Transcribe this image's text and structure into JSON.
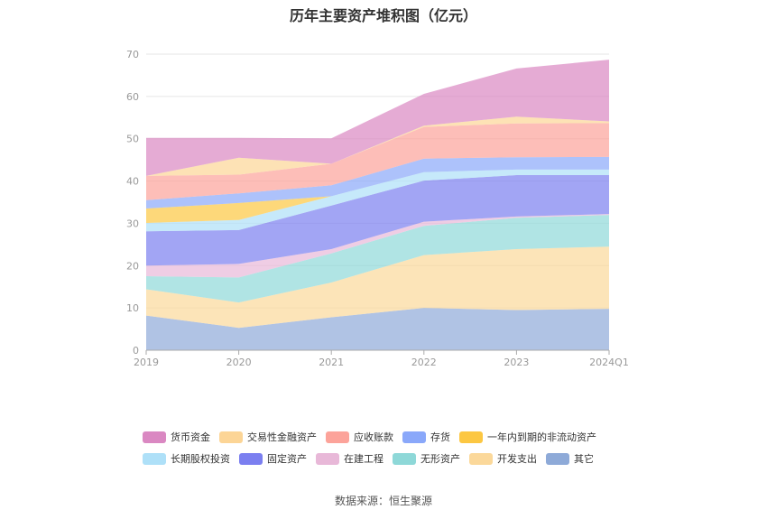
{
  "title": "历年主要资产堆积图（亿元）",
  "source": "数据来源：恒生聚源",
  "chart_data": {
    "type": "area",
    "stacked": true,
    "categories": [
      "2019",
      "2020",
      "2021",
      "2022",
      "2023",
      "2024Q1"
    ],
    "ylim": [
      0,
      70
    ],
    "yticks": [
      0,
      10,
      20,
      30,
      40,
      50,
      60,
      70
    ],
    "grid": true,
    "legend_position": "bottom",
    "series": [
      {
        "name": "其它",
        "color": "#8eaad8",
        "values": [
          8.2,
          5.3,
          7.8,
          10.0,
          9.5,
          9.8
        ]
      },
      {
        "name": "开发支出",
        "color": "#fbd89a",
        "values": [
          6.2,
          6.0,
          8.2,
          12.5,
          14.4,
          14.7
        ]
      },
      {
        "name": "无形资产",
        "color": "#8ed8d8",
        "values": [
          3.1,
          5.9,
          6.9,
          6.9,
          7.4,
          7.5
        ]
      },
      {
        "name": "在建工程",
        "color": "#e8b8d8",
        "values": [
          2.5,
          3.2,
          1.0,
          1.0,
          0.3,
          0.2
        ]
      },
      {
        "name": "固定资产",
        "color": "#7b7ff0",
        "values": [
          8.1,
          8.0,
          10.3,
          9.7,
          9.8,
          9.2
        ]
      },
      {
        "name": "长期股权投资",
        "color": "#aee0f8",
        "values": [
          2.0,
          2.4,
          2.2,
          2.0,
          1.3,
          1.3
        ]
      },
      {
        "name": "一年内到期的非流动资产",
        "color": "#fcc742",
        "values": [
          3.4,
          4.0,
          0.0,
          0.0,
          0.0,
          0.0
        ]
      },
      {
        "name": "存货",
        "color": "#8aa8fa",
        "values": [
          2.0,
          2.3,
          2.6,
          3.2,
          2.9,
          3.0
        ]
      },
      {
        "name": "应收账款",
        "color": "#fca39a",
        "values": [
          5.7,
          4.4,
          5.1,
          7.5,
          8.0,
          8.0
        ]
      },
      {
        "name": "交易性金融资产",
        "color": "#fcd596",
        "values": [
          0.0,
          4.0,
          0.0,
          0.3,
          1.6,
          0.4
        ]
      },
      {
        "name": "货币资金",
        "color": "#da88c2",
        "values": [
          9.0,
          4.7,
          6.0,
          7.5,
          11.4,
          14.6
        ]
      }
    ]
  },
  "legend_rows": [
    [
      "货币资金",
      "交易性金融资产",
      "应收账款",
      "存货",
      "一年内到期的非流动资产"
    ],
    [
      "长期股权投资",
      "固定资产",
      "在建工程",
      "无形资产",
      "开发支出",
      "其它"
    ]
  ]
}
